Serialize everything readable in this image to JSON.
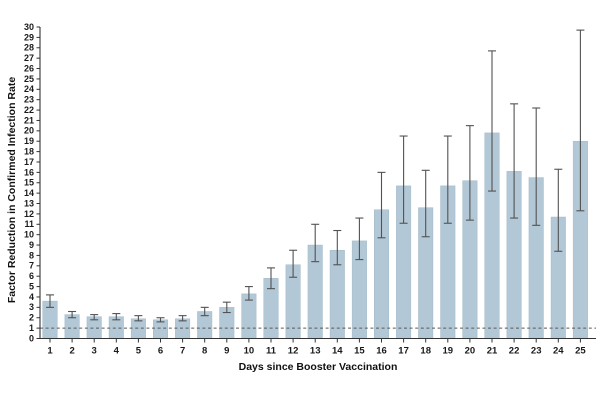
{
  "chart_data": {
    "type": "bar",
    "title": "",
    "xlabel": "Days since Booster Vaccination",
    "ylabel": "Factor Reduction in Confirmed Infection Rate",
    "categories": [
      1,
      2,
      3,
      4,
      5,
      6,
      7,
      8,
      9,
      10,
      11,
      12,
      13,
      14,
      15,
      16,
      17,
      18,
      19,
      20,
      21,
      22,
      23,
      24,
      25
    ],
    "values": [
      3.6,
      2.3,
      2.1,
      2.1,
      1.9,
      1.8,
      1.9,
      2.6,
      3.0,
      4.3,
      5.8,
      7.1,
      9.0,
      8.5,
      9.4,
      12.4,
      14.7,
      12.6,
      14.7,
      15.2,
      19.8,
      16.1,
      15.5,
      11.7,
      19.0
    ],
    "ci_low": [
      3.0,
      2.0,
      1.8,
      1.8,
      1.7,
      1.6,
      1.7,
      2.2,
      2.5,
      3.7,
      4.8,
      5.9,
      7.4,
      7.1,
      7.6,
      9.7,
      11.1,
      9.8,
      11.1,
      11.4,
      14.2,
      11.6,
      10.9,
      8.4,
      12.3
    ],
    "ci_high": [
      4.2,
      2.6,
      2.3,
      2.4,
      2.2,
      2.0,
      2.2,
      3.0,
      3.5,
      5.0,
      6.8,
      8.5,
      11.0,
      10.4,
      11.6,
      16.0,
      19.5,
      16.2,
      19.5,
      20.5,
      27.7,
      22.6,
      22.2,
      16.3,
      29.7
    ],
    "ylim": [
      0,
      30
    ],
    "y_tick_step": 1,
    "reference_line_y": 1,
    "error_bars": true,
    "grid": false,
    "legend_position": "none",
    "colors": {
      "bar_fill": "#b3c8d6",
      "bar_edge": "#a2bac9",
      "error_bar": "#525252",
      "axis": "#333333",
      "tick_label": "#1a1a1a",
      "reference_line": "#5a5a5a",
      "background": "#ffffff"
    }
  }
}
